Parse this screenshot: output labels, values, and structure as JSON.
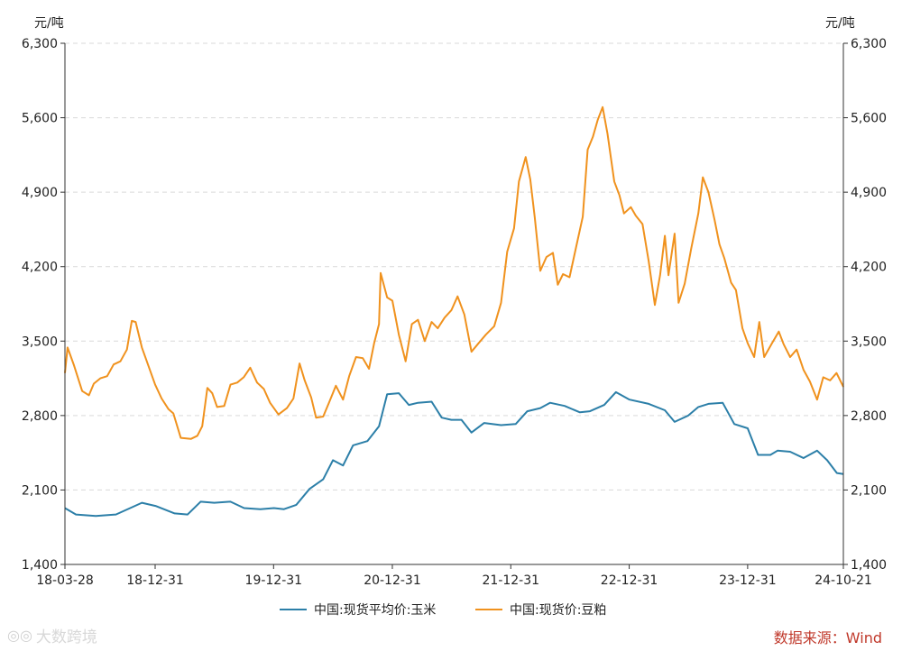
{
  "chart_data": {
    "type": "line",
    "unit_left": "元/吨",
    "unit_right": "元/吨",
    "ylim": [
      1400,
      6300
    ],
    "y_ticks": [
      "1,400",
      "2,100",
      "2,800",
      "3,500",
      "4,200",
      "4,900",
      "5,600",
      "6,300"
    ],
    "y_tick_values": [
      1400,
      2100,
      2800,
      3500,
      4200,
      4900,
      5600,
      6300
    ],
    "x_range": [
      "2018-03-28",
      "2024-10-21"
    ],
    "x_ticks": [
      {
        "label": "18-03-28",
        "date": "2018-03-28"
      },
      {
        "label": "18-12-31",
        "date": "2018-12-31"
      },
      {
        "label": "19-12-31",
        "date": "2019-12-31"
      },
      {
        "label": "20-12-31",
        "date": "2020-12-31"
      },
      {
        "label": "21-12-31",
        "date": "2021-12-31"
      },
      {
        "label": "22-12-31",
        "date": "2022-12-31"
      },
      {
        "label": "23-12-31",
        "date": "2023-12-31"
      },
      {
        "label": "24-10-21",
        "date": "2024-10-21"
      }
    ],
    "grid": true,
    "legend_position": "bottom",
    "series": [
      {
        "name": "中国:现货平均价:玉米",
        "color": "#2c7fa8",
        "points": [
          [
            "2018-03-28",
            1930
          ],
          [
            "2018-05-01",
            1870
          ],
          [
            "2018-07-01",
            1855
          ],
          [
            "2018-09-01",
            1870
          ],
          [
            "2018-10-15",
            1930
          ],
          [
            "2018-11-20",
            1980
          ],
          [
            "2019-01-01",
            1950
          ],
          [
            "2019-03-01",
            1880
          ],
          [
            "2019-04-10",
            1870
          ],
          [
            "2019-05-20",
            1990
          ],
          [
            "2019-07-01",
            1980
          ],
          [
            "2019-08-20",
            1990
          ],
          [
            "2019-10-01",
            1930
          ],
          [
            "2019-11-20",
            1920
          ],
          [
            "2020-01-01",
            1930
          ],
          [
            "2020-02-01",
            1920
          ],
          [
            "2020-03-10",
            1960
          ],
          [
            "2020-04-20",
            2110
          ],
          [
            "2020-06-01",
            2200
          ],
          [
            "2020-07-01",
            2380
          ],
          [
            "2020-08-01",
            2330
          ],
          [
            "2020-09-01",
            2520
          ],
          [
            "2020-10-15",
            2560
          ],
          [
            "2020-11-20",
            2700
          ],
          [
            "2020-12-15",
            3000
          ],
          [
            "2021-01-20",
            3010
          ],
          [
            "2021-02-20",
            2900
          ],
          [
            "2021-03-20",
            2920
          ],
          [
            "2021-05-01",
            2930
          ],
          [
            "2021-06-01",
            2780
          ],
          [
            "2021-07-01",
            2760
          ],
          [
            "2021-08-01",
            2760
          ],
          [
            "2021-09-01",
            2640
          ],
          [
            "2021-10-10",
            2730
          ],
          [
            "2021-12-01",
            2710
          ],
          [
            "2022-01-15",
            2720
          ],
          [
            "2022-02-20",
            2840
          ],
          [
            "2022-04-01",
            2870
          ],
          [
            "2022-05-01",
            2920
          ],
          [
            "2022-06-15",
            2890
          ],
          [
            "2022-08-01",
            2830
          ],
          [
            "2022-09-01",
            2840
          ],
          [
            "2022-10-15",
            2900
          ],
          [
            "2022-11-20",
            3020
          ],
          [
            "2023-01-01",
            2950
          ],
          [
            "2023-03-01",
            2910
          ],
          [
            "2023-04-20",
            2850
          ],
          [
            "2023-05-20",
            2740
          ],
          [
            "2023-07-01",
            2800
          ],
          [
            "2023-08-01",
            2880
          ],
          [
            "2023-09-01",
            2910
          ],
          [
            "2023-10-15",
            2920
          ],
          [
            "2023-11-20",
            2720
          ],
          [
            "2023-12-31",
            2680
          ],
          [
            "2024-02-01",
            2430
          ],
          [
            "2024-03-10",
            2430
          ],
          [
            "2024-04-01",
            2470
          ],
          [
            "2024-05-10",
            2460
          ],
          [
            "2024-06-20",
            2400
          ],
          [
            "2024-08-01",
            2470
          ],
          [
            "2024-09-01",
            2380
          ],
          [
            "2024-10-01",
            2260
          ],
          [
            "2024-10-21",
            2250
          ]
        ]
      },
      {
        "name": "中国:现货价:豆粕",
        "color": "#f0921e",
        "points": [
          [
            "2018-03-28",
            3200
          ],
          [
            "2018-04-05",
            3440
          ],
          [
            "2018-04-25",
            3270
          ],
          [
            "2018-05-20",
            3030
          ],
          [
            "2018-06-10",
            2990
          ],
          [
            "2018-06-25",
            3100
          ],
          [
            "2018-07-15",
            3150
          ],
          [
            "2018-08-05",
            3170
          ],
          [
            "2018-08-25",
            3280
          ],
          [
            "2018-09-15",
            3310
          ],
          [
            "2018-10-05",
            3420
          ],
          [
            "2018-10-20",
            3690
          ],
          [
            "2018-11-01",
            3680
          ],
          [
            "2018-11-20",
            3440
          ],
          [
            "2018-12-31",
            3090
          ],
          [
            "2019-01-20",
            2960
          ],
          [
            "2019-02-10",
            2860
          ],
          [
            "2019-02-25",
            2820
          ],
          [
            "2019-03-20",
            2590
          ],
          [
            "2019-04-20",
            2580
          ],
          [
            "2019-05-10",
            2610
          ],
          [
            "2019-05-25",
            2700
          ],
          [
            "2019-06-10",
            3060
          ],
          [
            "2019-06-25",
            3010
          ],
          [
            "2019-07-10",
            2880
          ],
          [
            "2019-08-01",
            2890
          ],
          [
            "2019-08-20",
            3090
          ],
          [
            "2019-09-10",
            3110
          ],
          [
            "2019-09-30",
            3160
          ],
          [
            "2019-10-20",
            3250
          ],
          [
            "2019-11-10",
            3110
          ],
          [
            "2019-12-01",
            3050
          ],
          [
            "2019-12-20",
            2920
          ],
          [
            "2020-01-15",
            2810
          ],
          [
            "2020-02-10",
            2870
          ],
          [
            "2020-03-01",
            2960
          ],
          [
            "2020-03-20",
            3290
          ],
          [
            "2020-04-05",
            3130
          ],
          [
            "2020-04-25",
            2970
          ],
          [
            "2020-05-10",
            2780
          ],
          [
            "2020-06-01",
            2790
          ],
          [
            "2020-06-20",
            2930
          ],
          [
            "2020-07-10",
            3080
          ],
          [
            "2020-08-01",
            2950
          ],
          [
            "2020-08-20",
            3170
          ],
          [
            "2020-09-10",
            3350
          ],
          [
            "2020-10-01",
            3340
          ],
          [
            "2020-10-20",
            3240
          ],
          [
            "2020-11-05",
            3480
          ],
          [
            "2020-11-20",
            3660
          ],
          [
            "2020-11-25",
            4140
          ],
          [
            "2020-12-15",
            3910
          ],
          [
            "2020-12-31",
            3880
          ],
          [
            "2021-01-20",
            3560
          ],
          [
            "2021-02-10",
            3310
          ],
          [
            "2021-03-01",
            3660
          ],
          [
            "2021-03-20",
            3700
          ],
          [
            "2021-04-10",
            3500
          ],
          [
            "2021-05-01",
            3680
          ],
          [
            "2021-05-20",
            3620
          ],
          [
            "2021-06-10",
            3720
          ],
          [
            "2021-07-01",
            3790
          ],
          [
            "2021-07-20",
            3920
          ],
          [
            "2021-08-10",
            3750
          ],
          [
            "2021-09-01",
            3400
          ],
          [
            "2021-09-20",
            3470
          ],
          [
            "2021-10-15",
            3560
          ],
          [
            "2021-11-10",
            3640
          ],
          [
            "2021-12-01",
            3860
          ],
          [
            "2021-12-20",
            4340
          ],
          [
            "2022-01-10",
            4560
          ],
          [
            "2022-01-25",
            5000
          ],
          [
            "2022-02-15",
            5230
          ],
          [
            "2022-03-01",
            5020
          ],
          [
            "2022-03-15",
            4660
          ],
          [
            "2022-04-01",
            4160
          ],
          [
            "2022-04-20",
            4290
          ],
          [
            "2022-05-10",
            4330
          ],
          [
            "2022-05-25",
            4030
          ],
          [
            "2022-06-10",
            4130
          ],
          [
            "2022-06-30",
            4100
          ],
          [
            "2022-07-20",
            4380
          ],
          [
            "2022-08-10",
            4670
          ],
          [
            "2022-08-25",
            5300
          ],
          [
            "2022-09-10",
            5420
          ],
          [
            "2022-09-25",
            5580
          ],
          [
            "2022-10-10",
            5700
          ],
          [
            "2022-10-25",
            5450
          ],
          [
            "2022-11-15",
            5000
          ],
          [
            "2022-12-01",
            4870
          ],
          [
            "2022-12-15",
            4700
          ],
          [
            "2023-01-05",
            4760
          ],
          [
            "2023-01-20",
            4680
          ],
          [
            "2023-02-10",
            4600
          ],
          [
            "2023-03-01",
            4250
          ],
          [
            "2023-03-20",
            3840
          ],
          [
            "2023-04-05",
            4120
          ],
          [
            "2023-04-20",
            4490
          ],
          [
            "2023-05-01",
            4120
          ],
          [
            "2023-05-20",
            4510
          ],
          [
            "2023-06-01",
            3860
          ],
          [
            "2023-06-20",
            4040
          ],
          [
            "2023-07-10",
            4370
          ],
          [
            "2023-08-01",
            4700
          ],
          [
            "2023-08-15",
            5040
          ],
          [
            "2023-09-01",
            4900
          ],
          [
            "2023-09-20",
            4640
          ],
          [
            "2023-10-05",
            4410
          ],
          [
            "2023-10-20",
            4280
          ],
          [
            "2023-11-10",
            4050
          ],
          [
            "2023-11-25",
            3980
          ],
          [
            "2023-12-15",
            3620
          ],
          [
            "2023-12-31",
            3480
          ],
          [
            "2024-01-20",
            3350
          ],
          [
            "2024-02-05",
            3680
          ],
          [
            "2024-02-20",
            3350
          ],
          [
            "2024-03-15",
            3480
          ],
          [
            "2024-04-05",
            3590
          ],
          [
            "2024-04-20",
            3470
          ],
          [
            "2024-05-10",
            3350
          ],
          [
            "2024-05-30",
            3420
          ],
          [
            "2024-06-20",
            3230
          ],
          [
            "2024-07-10",
            3120
          ],
          [
            "2024-08-01",
            2950
          ],
          [
            "2024-08-20",
            3160
          ],
          [
            "2024-09-10",
            3130
          ],
          [
            "2024-09-30",
            3200
          ],
          [
            "2024-10-21",
            3070
          ]
        ]
      }
    ]
  },
  "footer": {
    "source": "数据来源：Wind",
    "watermark": "大数跨境"
  }
}
